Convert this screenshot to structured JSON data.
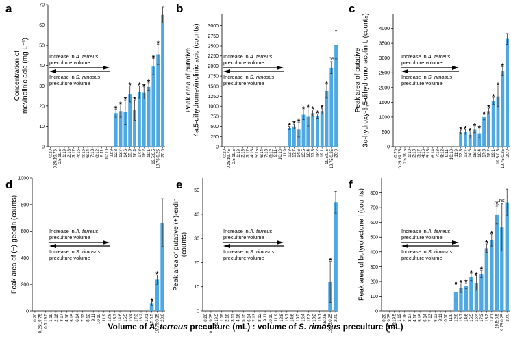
{
  "figure": {
    "x_title_parts": [
      "Volume of ",
      "A. terreus",
      " preculture (mL) : volume of ",
      "S. rimosus",
      " preculture (mL)"
    ],
    "bar_color": "#4ea9e2",
    "categories": [
      "0:20",
      "0.25:19.75",
      "0.5:19.5",
      "1:19",
      "2:18",
      "3:17",
      "4:16",
      "5:15",
      "6:14",
      "7:13",
      "8:12",
      "9:11",
      "10:10",
      "11:9",
      "12:8",
      "13:7",
      "14:6",
      "15:5",
      "16:4",
      "17:3",
      "18:2",
      "19:1",
      "19.5:0.5",
      "19.75:0.25",
      "20:0"
    ],
    "annotation": {
      "line1_prefix": "Increase in ",
      "line1_species": "A. terreus",
      "line2": "preculture volume",
      "line3_prefix": "Increase in ",
      "line3_species": "S. rimosus",
      "line4": "preculture volume"
    }
  },
  "chart_data": [
    {
      "type": "bar",
      "panel": "a",
      "ylabel_lines": [
        "Concentration of",
        "mevinolinic acid (mg L⁻¹)"
      ],
      "ylim": [
        0,
        70
      ],
      "yticks": [
        0,
        10,
        20,
        30,
        40,
        50,
        60,
        70
      ],
      "values": [
        0,
        0,
        0,
        0,
        0,
        0,
        0,
        0,
        0,
        0,
        0,
        0,
        0,
        0,
        16.5,
        17.5,
        17,
        26,
        18,
        27,
        26.5,
        29.5,
        39.5,
        45.5,
        65
      ],
      "errors": [
        0,
        0,
        0,
        0,
        0,
        0,
        0,
        0,
        0,
        0,
        0,
        0,
        0,
        0,
        2,
        3,
        6,
        4,
        5,
        3,
        3,
        2,
        4,
        5,
        4
      ],
      "marks": [
        "",
        "",
        "",
        "",
        "",
        "",
        "",
        "",
        "",
        "",
        "",
        "",
        "",
        "",
        "*",
        "*",
        "*",
        "*",
        "*",
        "*",
        "*",
        "*",
        "*",
        "*",
        ""
      ]
    },
    {
      "type": "bar",
      "panel": "b",
      "ylabel_lines": [
        "Peak area of putative",
        "4a,5-dihydromevinolinic acid (counts)"
      ],
      "ylim": [
        0,
        3300
      ],
      "yticks": [
        0,
        250,
        500,
        750,
        1000,
        1250,
        1500,
        1750,
        2000,
        2250,
        2500,
        2750,
        3000
      ],
      "values": [
        0,
        0,
        0,
        0,
        0,
        0,
        0,
        0,
        0,
        0,
        0,
        0,
        0,
        0,
        460,
        500,
        420,
        790,
        740,
        830,
        750,
        880,
        1380,
        1960,
        2530
      ],
      "errors": [
        0,
        0,
        0,
        0,
        0,
        0,
        0,
        0,
        0,
        0,
        0,
        0,
        0,
        0,
        40,
        60,
        180,
        120,
        230,
        80,
        60,
        70,
        170,
        150,
        350
      ],
      "marks": [
        "",
        "",
        "",
        "",
        "",
        "",
        "",
        "",
        "",
        "",
        "",
        "",
        "",
        "",
        "*",
        "*",
        "*",
        "*",
        "*",
        "*",
        "*",
        "*",
        "*",
        "ns",
        ""
      ]
    },
    {
      "type": "bar",
      "panel": "c",
      "ylabel_lines": [
        "Peak area of putative",
        "3α-hydroxy-3,5-dihydromonacolin L (counts)"
      ],
      "ylim": [
        0,
        4500
      ],
      "yticks": [
        0,
        500,
        1000,
        1500,
        2000,
        2500,
        3000,
        3500,
        4000
      ],
      "values": [
        0,
        0,
        0,
        0,
        0,
        0,
        0,
        0,
        0,
        0,
        0,
        0,
        0,
        0,
        500,
        500,
        400,
        570,
        450,
        1000,
        1200,
        1550,
        1700,
        2550,
        3650
      ],
      "errors": [
        0,
        0,
        0,
        0,
        0,
        0,
        0,
        0,
        0,
        0,
        0,
        0,
        0,
        0,
        60,
        80,
        110,
        100,
        150,
        90,
        100,
        120,
        350,
        150,
        180
      ],
      "marks": [
        "",
        "",
        "",
        "",
        "",
        "",
        "",
        "",
        "",
        "",
        "",
        "",
        "",
        "",
        "*",
        "*",
        "*",
        "*",
        "*",
        "*",
        "*",
        "*",
        "*",
        "*",
        ""
      ]
    },
    {
      "type": "bar",
      "panel": "d",
      "ylabel_lines": [
        "Peak area of (+)-geodin (counts)"
      ],
      "ylim": [
        0,
        1000
      ],
      "yticks": [
        0,
        200,
        400,
        600,
        800,
        1000
      ],
      "values": [
        0,
        0,
        0,
        0,
        0,
        0,
        0,
        0,
        0,
        0,
        0,
        0,
        0,
        0,
        0,
        0,
        0,
        0,
        0,
        0,
        0,
        0,
        55,
        235,
        665
      ],
      "errors": [
        0,
        0,
        0,
        0,
        0,
        0,
        0,
        0,
        0,
        0,
        0,
        0,
        0,
        0,
        0,
        0,
        0,
        0,
        0,
        0,
        0,
        0,
        15,
        35,
        180
      ],
      "marks": [
        "",
        "",
        "",
        "",
        "",
        "",
        "",
        "",
        "",
        "",
        "",
        "",
        "",
        "",
        "",
        "",
        "",
        "",
        "",
        "",
        "",
        "",
        "*",
        "*",
        ""
      ]
    },
    {
      "type": "bar",
      "panel": "e",
      "ylabel_lines": [
        "Peak area of putative (+)-erdin",
        "(counts)"
      ],
      "ylim": [
        0,
        55
      ],
      "yticks": [
        0,
        10,
        20,
        30,
        40,
        50
      ],
      "values": [
        0,
        0,
        0,
        0,
        0,
        0,
        0,
        0,
        0,
        0,
        0,
        0,
        0,
        0,
        0,
        0,
        0,
        0,
        0,
        0,
        0,
        0,
        0,
        12,
        45
      ],
      "errors": [
        0,
        0,
        0,
        0,
        0,
        0,
        0,
        0,
        0,
        0,
        0,
        0,
        0,
        0,
        0,
        0,
        0,
        0,
        0,
        0,
        0,
        0,
        0,
        8.5,
        4.5
      ],
      "marks": [
        "",
        "",
        "",
        "",
        "",
        "",
        "",
        "",
        "",
        "",
        "",
        "",
        "",
        "",
        "",
        "",
        "",
        "",
        "",
        "",
        "",
        "",
        "",
        "*",
        ""
      ]
    },
    {
      "type": "bar",
      "panel": "f",
      "ylabel_lines": [
        "Peak area of butyrolactone I (counts)"
      ],
      "ylim": [
        0,
        900
      ],
      "yticks": [
        0,
        100,
        200,
        300,
        400,
        500,
        600,
        700,
        800
      ],
      "values": [
        0,
        0,
        0,
        0,
        0,
        0,
        0,
        0,
        0,
        0,
        0,
        0,
        0,
        0,
        130,
        155,
        170,
        230,
        190,
        250,
        425,
        480,
        650,
        565,
        735
      ],
      "errors": [
        0,
        0,
        0,
        0,
        0,
        0,
        0,
        0,
        0,
        0,
        0,
        0,
        0,
        0,
        50,
        30,
        20,
        25,
        50,
        25,
        30,
        40,
        60,
        160,
        90
      ],
      "marks": [
        "",
        "",
        "",
        "",
        "",
        "",
        "",
        "",
        "",
        "",
        "",
        "",
        "",
        "",
        "*",
        "*",
        "*",
        "*",
        "*",
        "*",
        "*",
        "*",
        "ns",
        "ns",
        ""
      ]
    }
  ]
}
